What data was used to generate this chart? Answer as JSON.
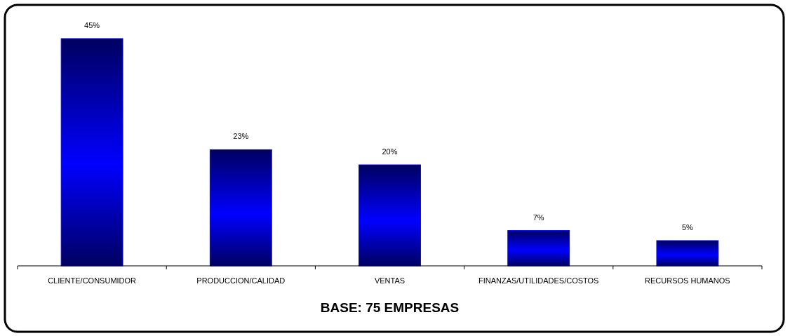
{
  "chart_data": {
    "type": "bar",
    "categories": [
      "CLIENTE/CONSUMIDOR",
      "PRODUCCION/CALIDAD",
      "VENTAS",
      "FINANZAS/UTILIDADES/COSTOS",
      "RECURSOS HUMANOS"
    ],
    "values": [
      45,
      23,
      20,
      7,
      5
    ],
    "value_labels": [
      "45%",
      "23%",
      "20%",
      "7%",
      "5%"
    ],
    "color": "#0000ff",
    "grid": false,
    "annotations": [
      "BASE: 75 EMPRESAS"
    ]
  }
}
